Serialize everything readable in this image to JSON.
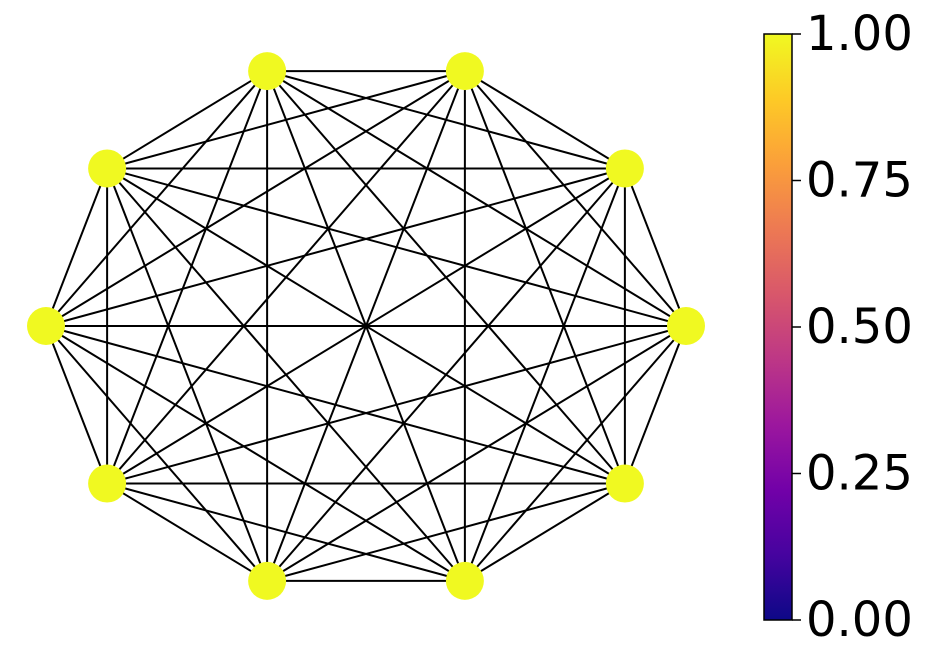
{
  "graph": {
    "type": "complete-graph",
    "node_count": 10,
    "node_values": [
      1,
      1,
      1,
      1,
      1,
      1,
      1,
      1,
      1,
      1
    ],
    "node_color": "#f0f921",
    "edge_color": "#000000"
  },
  "colorbar": {
    "colormap": "plasma",
    "range": [
      0,
      1
    ],
    "stops": [
      "#0d0887",
      "#46039f",
      "#7201a8",
      "#9c179e",
      "#bd3786",
      "#d8576b",
      "#ed7953",
      "#fb9f3a",
      "#fdca26",
      "#f0f921"
    ],
    "ticks": [
      {
        "value": 0.0,
        "label": "0.00"
      },
      {
        "value": 0.25,
        "label": "0.25"
      },
      {
        "value": 0.5,
        "label": "0.50"
      },
      {
        "value": 0.75,
        "label": "0.75"
      },
      {
        "value": 1.0,
        "label": "1.00"
      }
    ]
  }
}
